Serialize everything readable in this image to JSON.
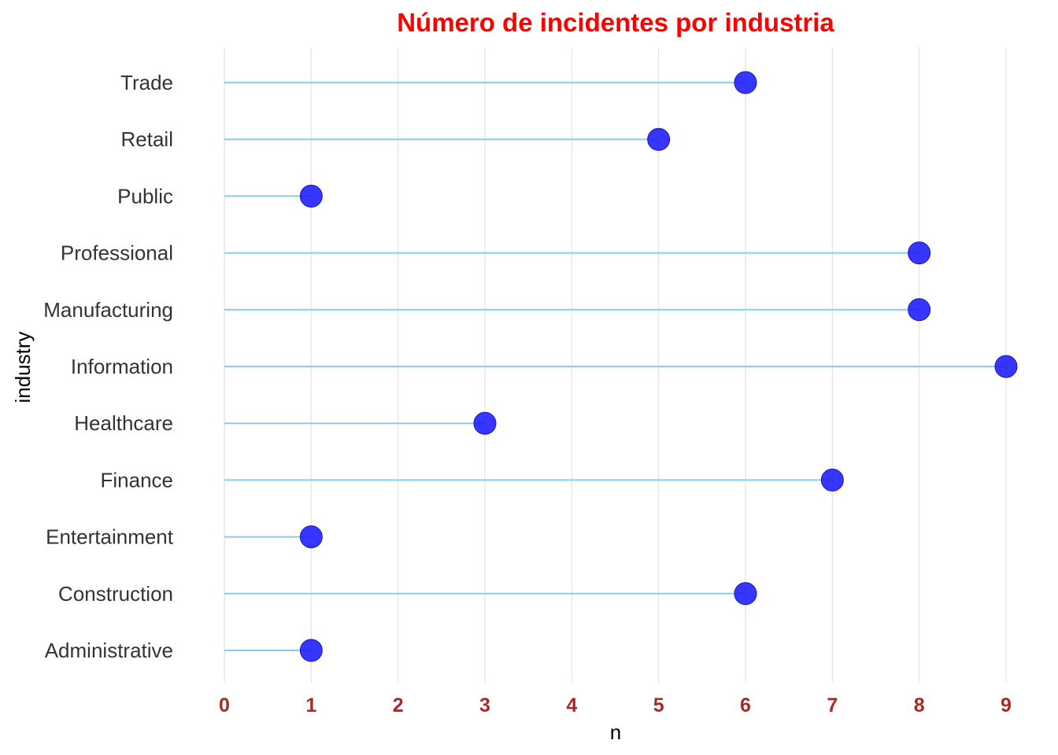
{
  "chart_data": {
    "type": "lollipop",
    "title": "Número de incidentes por industria",
    "xlabel": "n",
    "ylabel": "industry",
    "categories": [
      "Administrative",
      "Construction",
      "Entertainment",
      "Finance",
      "Healthcare",
      "Information",
      "Manufacturing",
      "Professional",
      "Public",
      "Retail",
      "Trade"
    ],
    "values": [
      1,
      6,
      1,
      7,
      3,
      9,
      8,
      8,
      1,
      5,
      6
    ],
    "xlim": [
      0,
      9
    ],
    "xticks": [
      "0",
      "1",
      "2",
      "3",
      "4",
      "5",
      "6",
      "7",
      "8",
      "9"
    ],
    "grid": "vertical",
    "colors": {
      "title": "#ff0000",
      "point": "#1a1aff",
      "stem": "#87ceeb",
      "tick_labels": "#a52a2a"
    }
  }
}
